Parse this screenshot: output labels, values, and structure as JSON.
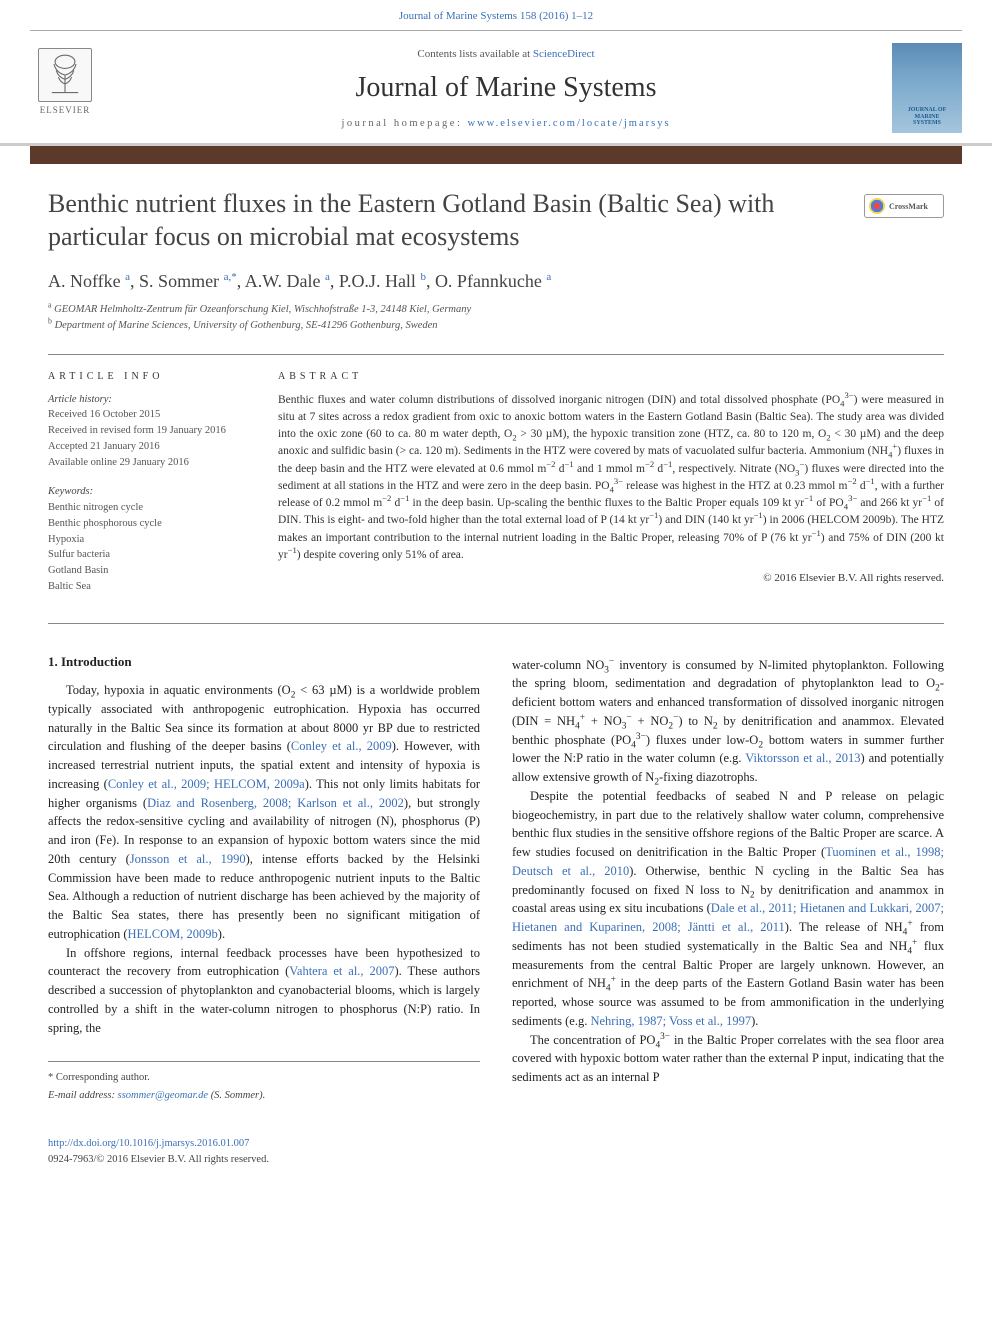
{
  "header": {
    "citation_link": "Journal of Marine Systems 158 (2016) 1–12",
    "contents_prefix": "Contents lists available at ",
    "contents_link": "ScienceDirect",
    "journal_name": "Journal of Marine Systems",
    "homepage_prefix": "journal homepage: ",
    "homepage_url": "www.elsevier.com/locate/jmarsys",
    "publisher_logo_text": "ELSEVIER",
    "cover_text_line1": "JOURNAL OF",
    "cover_text_line2": "MARINE",
    "cover_text_line3": "SYSTEMS"
  },
  "crossmark": {
    "label": "CrossMark"
  },
  "article": {
    "title": "Benthic nutrient fluxes in the Eastern Gotland Basin (Baltic Sea) with particular focus on microbial mat ecosystems",
    "authors_html": "A. Noffke <sup>a</sup>, S. Sommer <sup>a,*</sup>, A.W. Dale <sup>a</sup>, P.O.J. Hall <sup>b</sup>, O. Pfannkuche <sup>a</sup>",
    "affiliations": [
      {
        "marker": "a",
        "text": "GEOMAR Helmholtz-Zentrum für Ozeanforschung Kiel, Wischhofstraße 1-3, 24148 Kiel, Germany"
      },
      {
        "marker": "b",
        "text": "Department of Marine Sciences, University of Gothenburg, SE-41296 Gothenburg, Sweden"
      }
    ]
  },
  "article_info": {
    "label": "ARTICLE INFO",
    "history_heading": "Article history:",
    "history": [
      "Received 16 October 2015",
      "Received in revised form 19 January 2016",
      "Accepted 21 January 2016",
      "Available online 29 January 2016"
    ],
    "keywords_heading": "Keywords:",
    "keywords": [
      "Benthic nitrogen cycle",
      "Benthic phosphorous cycle",
      "Hypoxia",
      "Sulfur bacteria",
      "Gotland Basin",
      "Baltic Sea"
    ]
  },
  "abstract": {
    "label": "ABSTRACT",
    "text_html": "Benthic fluxes and water column distributions of dissolved inorganic nitrogen (DIN) and total dissolved phosphate (PO<sub>4</sub><sup>3−</sup>) were measured in situ at 7 sites across a redox gradient from oxic to anoxic bottom waters in the Eastern Gotland Basin (Baltic Sea). The study area was divided into the oxic zone (60 to ca. 80 m water depth, O<sub>2</sub> > 30 µM), the hypoxic transition zone (HTZ, ca. 80 to 120 m, O<sub>2</sub> < 30 µM) and the deep anoxic and sulfidic basin (> ca. 120 m). Sediments in the HTZ were covered by mats of vacuolated sulfur bacteria. Ammonium (NH<sub>4</sub><sup>+</sup>) fluxes in the deep basin and the HTZ were elevated at 0.6 mmol m<sup>−2</sup> d<sup>−1</sup> and 1 mmol m<sup>−2</sup> d<sup>−1</sup>, respectively. Nitrate (NO<sub>3</sub><sup>−</sup>) fluxes were directed into the sediment at all stations in the HTZ and were zero in the deep basin. PO<sub>4</sub><sup>3−</sup> release was highest in the HTZ at 0.23 mmol m<sup>−2</sup> d<sup>−1</sup>, with a further release of 0.2 mmol m<sup>−2</sup> d<sup>−1</sup> in the deep basin. Up-scaling the benthic fluxes to the Baltic Proper equals 109 kt yr<sup>−1</sup> of PO<sub>4</sub><sup>3−</sup> and 266 kt yr<sup>−1</sup> of DIN. This is eight- and two-fold higher than the total external load of P (14 kt yr<sup>−1</sup>) and DIN (140 kt yr<sup>−1</sup>) in 2006 (HELCOM 2009b). The HTZ makes an important contribution to the internal nutrient loading in the Baltic Proper, releasing 70% of P (76 kt yr<sup>−1</sup>) and 75% of DIN (200 kt yr<sup>−1</sup>) despite covering only 51% of area.",
    "copyright": "© 2016 Elsevier B.V. All rights reserved."
  },
  "body": {
    "intro_heading": "1. Introduction",
    "left_paragraphs": [
      "Today, hypoxia in aquatic environments (O<sub>2</sub> < 63 µM) is a worldwide problem typically associated with anthropogenic eutrophication. Hypoxia has occurred naturally in the Baltic Sea since its formation at about 8000 yr BP due to restricted circulation and flushing of the deeper basins (<span class=\"cite\">Conley et al., 2009</span>). However, with increased terrestrial nutrient inputs, the spatial extent and intensity of hypoxia is increasing (<span class=\"cite\">Conley et al., 2009; HELCOM, 2009a</span>). This not only limits habitats for higher organisms (<span class=\"cite\">Diaz and Rosenberg, 2008; Karlson et al., 2002</span>), but strongly affects the redox-sensitive cycling and availability of nitrogen (N), phosphorus (P) and iron (Fe). In response to an expansion of hypoxic bottom waters since the mid 20th century (<span class=\"cite\">Jonsson et al., 1990</span>), intense efforts backed by the Helsinki Commission have been made to reduce anthropogenic nutrient inputs to the Baltic Sea. Although a reduction of nutrient discharge has been achieved by the majority of the Baltic Sea states, there has presently been no significant mitigation of eutrophication (<span class=\"cite\">HELCOM, 2009b</span>).",
      "In offshore regions, internal feedback processes have been hypothesized to counteract the recovery from eutrophication (<span class=\"cite\">Vahtera et al., 2007</span>). These authors described a succession of phytoplankton and cyanobacterial blooms, which is largely controlled by a shift in the water-column nitrogen to phosphorus (N:P) ratio. In spring, the"
    ],
    "right_paragraphs": [
      "water-column NO<sub>3</sub><sup>−</sup> inventory is consumed by N-limited phytoplankton. Following the spring bloom, sedimentation and degradation of phytoplankton lead to O<sub>2</sub>-deficient bottom waters and enhanced transformation of dissolved inorganic nitrogen (DIN = NH<sub>4</sub><sup>+</sup> + NO<sub>3</sub><sup>−</sup> + NO<sub>2</sub><sup>−</sup>) to N<sub>2</sub> by denitrification and anammox. Elevated benthic phosphate (PO<sub>4</sub><sup>3−</sup>) fluxes under low-O<sub>2</sub> bottom waters in summer further lower the N:P ratio in the water column (e.g. <span class=\"cite\">Viktorsson et al., 2013</span>) and potentially allow extensive growth of N<sub>2</sub>-fixing diazotrophs.",
      "Despite the potential feedbacks of seabed N and P release on pelagic biogeochemistry, in part due to the relatively shallow water column, comprehensive benthic flux studies in the sensitive offshore regions of the Baltic Proper are scarce. A few studies focused on denitrification in the Baltic Proper (<span class=\"cite\">Tuominen et al., 1998; Deutsch et al., 2010</span>). Otherwise, benthic N cycling in the Baltic Sea has predominantly focused on fixed N loss to N<sub>2</sub> by denitrification and anammox in coastal areas using ex situ incubations (<span class=\"cite\">Dale et al., 2011; Hietanen and Lukkari, 2007; Hietanen and Kuparinen, 2008; Jäntti et al., 2011</span>). The release of NH<sub>4</sub><sup>+</sup> from sediments has not been studied systematically in the Baltic Sea and NH<sub>4</sub><sup>+</sup> flux measurements from the central Baltic Proper are largely unknown. However, an enrichment of NH<sub>4</sub><sup>+</sup> in the deep parts of the Eastern Gotland Basin water has been reported, whose source was assumed to be from ammonification in the underlying sediments (e.g. <span class=\"cite\">Nehring, 1987; Voss et al., 1997</span>).",
      "The concentration of PO<sub>4</sub><sup>3−</sup> in the Baltic Proper correlates with the sea floor area covered with hypoxic bottom water rather than the external P input, indicating that the sediments act as an internal P"
    ]
  },
  "footer": {
    "corresponding_label": "* Corresponding author.",
    "email_label": "E-mail address:",
    "email": "ssommer@geomar.de",
    "email_person": "(S. Sommer).",
    "doi_url": "http://dx.doi.org/10.1016/j.jmarsys.2016.01.007",
    "issn_line": "0924-7963/© 2016 Elsevier B.V. All rights reserved."
  },
  "colors": {
    "link": "#3a6fb7",
    "text": "#222222",
    "brown_bar": "#5b3a2a",
    "cover_gradient_top": "#5b8ab5",
    "cover_gradient_bottom": "#a5c5dd"
  }
}
